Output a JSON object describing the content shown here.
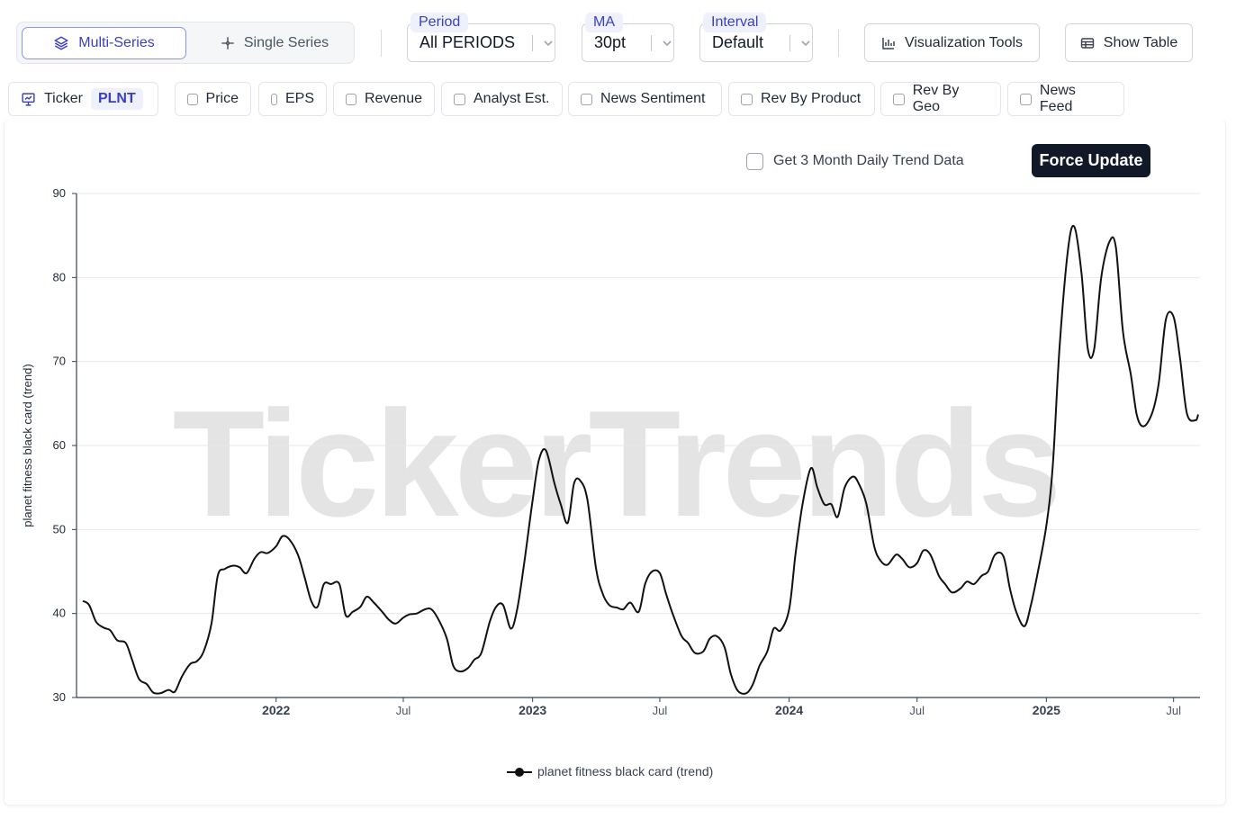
{
  "toolbar": {
    "modes": [
      {
        "label": "Multi-Series",
        "icon": "layers-icon",
        "active": true
      },
      {
        "label": "Single Series",
        "icon": "crosshair-icon",
        "active": false
      }
    ],
    "period": {
      "label": "Period",
      "value": "All PERIODS"
    },
    "ma": {
      "label": "MA",
      "value": "30pt"
    },
    "interval": {
      "label": "Interval",
      "value": "Default"
    },
    "visualization_tools_label": "Visualization Tools",
    "show_table_label": "Show Table"
  },
  "series_bar": {
    "ticker_label": "Ticker",
    "ticker_value": "PLNT",
    "toggles": [
      "Price",
      "EPS",
      "Revenue",
      "Analyst Est.",
      "News Sentiment",
      "Rev By Product",
      "Rev By Geo",
      "News Feed"
    ]
  },
  "chart_controls": {
    "daily_trend_label": "Get 3 Month Daily Trend Data",
    "force_update_label": "Force Update"
  },
  "watermark": "TickerTrends",
  "colors": {
    "accent": "#3b3fbf",
    "line": "#111111",
    "watermark": "#e4e4e4"
  },
  "chart_data": {
    "type": "line",
    "title": "",
    "xlabel": "",
    "ylabel": "planet fitness black card  (trend)",
    "ylim": [
      30,
      90
    ],
    "yticks": [
      30,
      40,
      50,
      60,
      70,
      80,
      90
    ],
    "xticks": [
      {
        "label": "2022",
        "date": "2022-01-01",
        "bold": true
      },
      {
        "label": "Jul",
        "date": "2022-07-01",
        "bold": false
      },
      {
        "label": "2023",
        "date": "2023-01-01",
        "bold": true
      },
      {
        "label": "Jul",
        "date": "2023-07-01",
        "bold": false
      },
      {
        "label": "2024",
        "date": "2024-01-01",
        "bold": true
      },
      {
        "label": "Jul",
        "date": "2024-07-01",
        "bold": false
      },
      {
        "label": "2025",
        "date": "2025-01-01",
        "bold": true
      },
      {
        "label": "Jul",
        "date": "2025-07-01",
        "bold": false
      }
    ],
    "grid": true,
    "legend": "bottom-center",
    "series": [
      {
        "name": "planet fitness black card  (trend)",
        "points": [
          [
            "2021-04-01",
            41.5
          ],
          [
            "2021-04-10",
            41.0
          ],
          [
            "2021-04-20",
            39.0
          ],
          [
            "2021-05-01",
            38.3
          ],
          [
            "2021-05-10",
            38.0
          ],
          [
            "2021-05-20",
            36.8
          ],
          [
            "2021-06-01",
            36.5
          ],
          [
            "2021-06-10",
            34.5
          ],
          [
            "2021-06-20",
            32.2
          ],
          [
            "2021-07-01",
            31.6
          ],
          [
            "2021-07-10",
            30.6
          ],
          [
            "2021-07-20",
            30.5
          ],
          [
            "2021-08-01",
            30.9
          ],
          [
            "2021-08-10",
            30.7
          ],
          [
            "2021-08-20",
            32.5
          ],
          [
            "2021-09-01",
            34.0
          ],
          [
            "2021-09-10",
            34.3
          ],
          [
            "2021-09-20",
            35.5
          ],
          [
            "2021-10-01",
            38.8
          ],
          [
            "2021-10-10",
            44.5
          ],
          [
            "2021-10-20",
            45.3
          ],
          [
            "2021-11-01",
            45.7
          ],
          [
            "2021-11-10",
            45.5
          ],
          [
            "2021-11-20",
            44.8
          ],
          [
            "2021-12-01",
            46.5
          ],
          [
            "2021-12-10",
            47.3
          ],
          [
            "2021-12-20",
            47.2
          ],
          [
            "2022-01-01",
            48.0
          ],
          [
            "2022-01-10",
            49.2
          ],
          [
            "2022-01-20",
            48.8
          ],
          [
            "2022-02-01",
            47.0
          ],
          [
            "2022-02-10",
            44.5
          ],
          [
            "2022-02-20",
            41.5
          ],
          [
            "2022-03-01",
            40.8
          ],
          [
            "2022-03-10",
            43.5
          ],
          [
            "2022-03-20",
            43.5
          ],
          [
            "2022-04-01",
            43.5
          ],
          [
            "2022-04-10",
            39.8
          ],
          [
            "2022-04-20",
            40.2
          ],
          [
            "2022-05-01",
            40.8
          ],
          [
            "2022-05-10",
            42.0
          ],
          [
            "2022-05-20",
            41.3
          ],
          [
            "2022-06-01",
            40.2
          ],
          [
            "2022-06-10",
            39.3
          ],
          [
            "2022-06-20",
            38.8
          ],
          [
            "2022-07-01",
            39.5
          ],
          [
            "2022-07-10",
            39.9
          ],
          [
            "2022-07-20",
            40.0
          ],
          [
            "2022-08-01",
            40.5
          ],
          [
            "2022-08-10",
            40.5
          ],
          [
            "2022-08-20",
            39.3
          ],
          [
            "2022-09-01",
            37.0
          ],
          [
            "2022-09-10",
            33.8
          ],
          [
            "2022-09-20",
            33.1
          ],
          [
            "2022-10-01",
            33.5
          ],
          [
            "2022-10-10",
            34.5
          ],
          [
            "2022-10-20",
            35.3
          ],
          [
            "2022-11-01",
            39.0
          ],
          [
            "2022-11-10",
            40.8
          ],
          [
            "2022-11-20",
            41.0
          ],
          [
            "2022-12-01",
            38.2
          ],
          [
            "2022-12-10",
            40.5
          ],
          [
            "2022-12-20",
            46.0
          ],
          [
            "2023-01-01",
            53.5
          ],
          [
            "2023-01-10",
            58.3
          ],
          [
            "2023-01-20",
            59.4
          ],
          [
            "2023-02-01",
            55.5
          ],
          [
            "2023-02-10",
            53.0
          ],
          [
            "2023-02-20",
            50.8
          ],
          [
            "2023-03-01",
            55.5
          ],
          [
            "2023-03-10",
            55.8
          ],
          [
            "2023-03-20",
            53.5
          ],
          [
            "2023-04-01",
            45.5
          ],
          [
            "2023-04-10",
            42.5
          ],
          [
            "2023-04-20",
            41.0
          ],
          [
            "2023-05-01",
            40.7
          ],
          [
            "2023-05-10",
            40.5
          ],
          [
            "2023-05-20",
            41.3
          ],
          [
            "2023-06-01",
            40.2
          ],
          [
            "2023-06-10",
            43.5
          ],
          [
            "2023-06-20",
            45.0
          ],
          [
            "2023-07-01",
            44.8
          ],
          [
            "2023-07-10",
            42.3
          ],
          [
            "2023-07-20",
            39.8
          ],
          [
            "2023-08-01",
            37.3
          ],
          [
            "2023-08-10",
            36.5
          ],
          [
            "2023-08-20",
            35.3
          ],
          [
            "2023-09-01",
            35.5
          ],
          [
            "2023-09-10",
            37.0
          ],
          [
            "2023-09-20",
            37.3
          ],
          [
            "2023-10-01",
            36.0
          ],
          [
            "2023-10-10",
            32.8
          ],
          [
            "2023-10-20",
            30.8
          ],
          [
            "2023-11-01",
            30.5
          ],
          [
            "2023-11-10",
            31.5
          ],
          [
            "2023-11-20",
            33.8
          ],
          [
            "2023-12-01",
            35.5
          ],
          [
            "2023-12-10",
            38.2
          ],
          [
            "2023-12-20",
            38.0
          ],
          [
            "2024-01-01",
            40.5
          ],
          [
            "2024-01-10",
            47.0
          ],
          [
            "2024-01-20",
            53.0
          ],
          [
            "2024-02-01",
            57.3
          ],
          [
            "2024-02-10",
            55.0
          ],
          [
            "2024-02-20",
            53.0
          ],
          [
            "2024-03-01",
            53.0
          ],
          [
            "2024-03-10",
            51.5
          ],
          [
            "2024-03-20",
            55.0
          ],
          [
            "2024-04-01",
            56.3
          ],
          [
            "2024-04-10",
            55.3
          ],
          [
            "2024-04-20",
            53.0
          ],
          [
            "2024-05-01",
            48.0
          ],
          [
            "2024-05-10",
            46.3
          ],
          [
            "2024-05-20",
            45.8
          ],
          [
            "2024-06-01",
            47.0
          ],
          [
            "2024-06-10",
            46.5
          ],
          [
            "2024-06-20",
            45.5
          ],
          [
            "2024-07-01",
            46.0
          ],
          [
            "2024-07-10",
            47.5
          ],
          [
            "2024-07-20",
            47.0
          ],
          [
            "2024-08-01",
            44.5
          ],
          [
            "2024-08-10",
            43.5
          ],
          [
            "2024-08-20",
            42.5
          ],
          [
            "2024-09-01",
            43.0
          ],
          [
            "2024-09-10",
            43.8
          ],
          [
            "2024-09-20",
            43.5
          ],
          [
            "2024-10-01",
            44.5
          ],
          [
            "2024-10-10",
            45.0
          ],
          [
            "2024-10-20",
            47.0
          ],
          [
            "2024-11-01",
            46.8
          ],
          [
            "2024-11-10",
            43.0
          ],
          [
            "2024-11-20",
            40.0
          ],
          [
            "2024-12-01",
            38.5
          ],
          [
            "2024-12-10",
            41.0
          ],
          [
            "2024-12-20",
            45.0
          ],
          [
            "2025-01-01",
            50.5
          ],
          [
            "2025-01-10",
            57.5
          ],
          [
            "2025-01-20",
            72.0
          ],
          [
            "2025-02-01",
            83.5
          ],
          [
            "2025-02-10",
            86.0
          ],
          [
            "2025-02-20",
            80.5
          ],
          [
            "2025-03-01",
            71.5
          ],
          [
            "2025-03-10",
            71.5
          ],
          [
            "2025-03-20",
            80.0
          ],
          [
            "2025-04-01",
            84.3
          ],
          [
            "2025-04-10",
            83.5
          ],
          [
            "2025-04-20",
            73.5
          ],
          [
            "2025-05-01",
            68.5
          ],
          [
            "2025-05-10",
            63.5
          ],
          [
            "2025-05-20",
            62.3
          ],
          [
            "2025-06-01",
            64.0
          ],
          [
            "2025-06-10",
            67.5
          ],
          [
            "2025-06-20",
            75.0
          ],
          [
            "2025-07-01",
            75.3
          ],
          [
            "2025-07-10",
            70.5
          ],
          [
            "2025-07-20",
            63.8
          ],
          [
            "2025-08-01",
            63.0
          ],
          [
            "2025-08-05",
            63.7
          ]
        ]
      }
    ]
  }
}
